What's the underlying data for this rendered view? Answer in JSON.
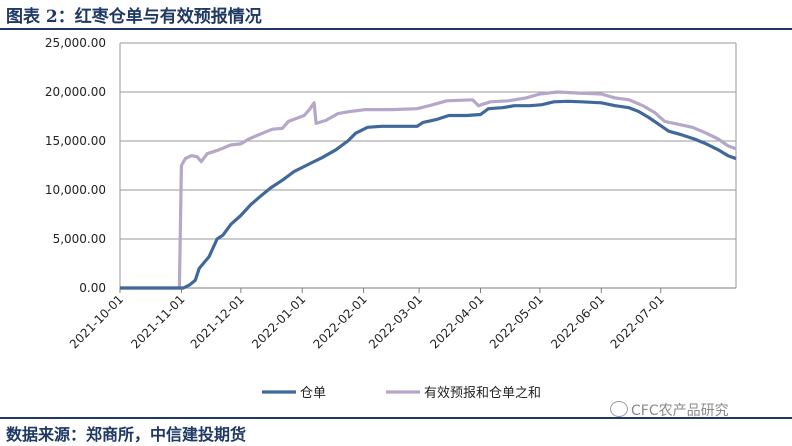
{
  "title": "图表 2：红枣仓单与有效预报情况",
  "source": "数据来源：郑商所，中信建投期货",
  "watermark": "CFC农产品研究",
  "chart_data": {
    "type": "line",
    "title": "",
    "xlabel": "",
    "ylabel": "",
    "ylim": [
      0,
      25000
    ],
    "yticks": [
      "0.00",
      "5,000.00",
      "10,000.00",
      "15,000.00",
      "20,000.00",
      "25,000.00"
    ],
    "xticks": [
      "2021-10-01",
      "2021-11-01",
      "2021-12-01",
      "2022-01-01",
      "2022-02-01",
      "2022-03-01",
      "2022-04-01",
      "2022-05-01",
      "2022-06-01",
      "2022-07-01"
    ],
    "grid": "horizontal",
    "legend": "bottom",
    "colors": {
      "仓单": "#41689a",
      "有效预报和仓单之和": "#b4a7c8"
    },
    "series": [
      {
        "name": "仓单",
        "points": [
          [
            "2021-10-01",
            0
          ],
          [
            "2021-10-29",
            0
          ],
          [
            "2021-11-02",
            0
          ],
          [
            "2021-11-05",
            300
          ],
          [
            "2021-11-08",
            800
          ],
          [
            "2021-11-10",
            2000
          ],
          [
            "2021-11-15",
            3200
          ],
          [
            "2021-11-19",
            5000
          ],
          [
            "2021-11-22",
            5400
          ],
          [
            "2021-11-26",
            6500
          ],
          [
            "2021-12-01",
            7400
          ],
          [
            "2021-12-06",
            8500
          ],
          [
            "2021-12-10",
            9200
          ],
          [
            "2021-12-16",
            10200
          ],
          [
            "2021-12-22",
            11000
          ],
          [
            "2021-12-28",
            11900
          ],
          [
            "2022-01-05",
            12700
          ],
          [
            "2022-01-11",
            13300
          ],
          [
            "2022-01-18",
            14100
          ],
          [
            "2022-01-24",
            15000
          ],
          [
            "2022-01-28",
            15800
          ],
          [
            "2022-02-03",
            16400
          ],
          [
            "2022-02-10",
            16500
          ],
          [
            "2022-02-20",
            16500
          ],
          [
            "2022-02-28",
            16500
          ],
          [
            "2022-03-03",
            16900
          ],
          [
            "2022-03-10",
            17200
          ],
          [
            "2022-03-16",
            17600
          ],
          [
            "2022-03-25",
            17600
          ],
          [
            "2022-04-01",
            17700
          ],
          [
            "2022-04-05",
            18300
          ],
          [
            "2022-04-12",
            18400
          ],
          [
            "2022-04-18",
            18600
          ],
          [
            "2022-04-26",
            18600
          ],
          [
            "2022-05-02",
            18700
          ],
          [
            "2022-05-08",
            19000
          ],
          [
            "2022-05-15",
            19050
          ],
          [
            "2022-05-22",
            19000
          ],
          [
            "2022-06-01",
            18900
          ],
          [
            "2022-06-08",
            18600
          ],
          [
            "2022-06-15",
            18400
          ],
          [
            "2022-06-20",
            18000
          ],
          [
            "2022-06-25",
            17400
          ],
          [
            "2022-06-30",
            16700
          ],
          [
            "2022-07-05",
            16000
          ],
          [
            "2022-07-12",
            15600
          ],
          [
            "2022-07-18",
            15200
          ],
          [
            "2022-07-24",
            14700
          ],
          [
            "2022-07-30",
            14100
          ],
          [
            "2022-08-04",
            13500
          ],
          [
            "2022-08-08",
            13200
          ]
        ]
      },
      {
        "name": "有效预报和仓单之和",
        "points": [
          [
            "2021-10-01",
            0
          ],
          [
            "2021-10-30",
            0
          ],
          [
            "2021-10-31",
            0
          ],
          [
            "2021-11-01",
            12500
          ],
          [
            "2021-11-03",
            13200
          ],
          [
            "2021-11-06",
            13500
          ],
          [
            "2021-11-09",
            13400
          ],
          [
            "2021-11-11",
            12900
          ],
          [
            "2021-11-14",
            13700
          ],
          [
            "2021-11-20",
            14100
          ],
          [
            "2021-11-26",
            14600
          ],
          [
            "2021-12-01",
            14700
          ],
          [
            "2021-12-05",
            15200
          ],
          [
            "2021-12-12",
            15800
          ],
          [
            "2021-12-17",
            16200
          ],
          [
            "2021-12-22",
            16300
          ],
          [
            "2021-12-25",
            17000
          ],
          [
            "2022-01-02",
            17600
          ],
          [
            "2022-01-05",
            18300
          ],
          [
            "2022-01-07",
            18900
          ],
          [
            "2022-01-08",
            16800
          ],
          [
            "2022-01-13",
            17100
          ],
          [
            "2022-01-19",
            17800
          ],
          [
            "2022-01-25",
            18000
          ],
          [
            "2022-02-02",
            18200
          ],
          [
            "2022-02-15",
            18200
          ],
          [
            "2022-02-28",
            18300
          ],
          [
            "2022-03-08",
            18700
          ],
          [
            "2022-03-15",
            19100
          ],
          [
            "2022-03-28",
            19200
          ],
          [
            "2022-03-31",
            18600
          ],
          [
            "2022-04-06",
            19000
          ],
          [
            "2022-04-15",
            19100
          ],
          [
            "2022-04-24",
            19400
          ],
          [
            "2022-05-01",
            19800
          ],
          [
            "2022-05-10",
            20000
          ],
          [
            "2022-05-20",
            19900
          ],
          [
            "2022-06-01",
            19800
          ],
          [
            "2022-06-08",
            19400
          ],
          [
            "2022-06-15",
            19200
          ],
          [
            "2022-06-22",
            18600
          ],
          [
            "2022-06-28",
            17900
          ],
          [
            "2022-07-03",
            17000
          ],
          [
            "2022-07-10",
            16700
          ],
          [
            "2022-07-17",
            16400
          ],
          [
            "2022-07-24",
            15800
          ],
          [
            "2022-07-30",
            15200
          ],
          [
            "2022-08-04",
            14500
          ],
          [
            "2022-08-08",
            14200
          ]
        ]
      }
    ]
  }
}
